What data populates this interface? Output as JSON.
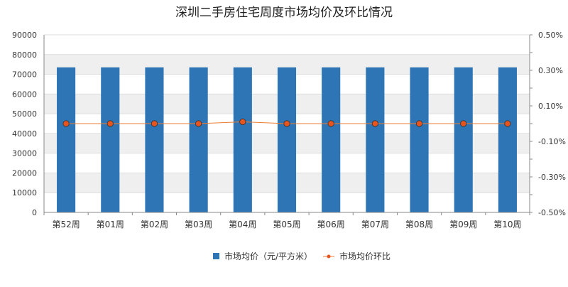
{
  "chart_data": {
    "type": "bar",
    "title": "深圳二手房住宅周度市场均价及环比情况",
    "categories": [
      "第52周",
      "第01周",
      "第02周",
      "第03周",
      "第04周",
      "第05周",
      "第06周",
      "第07周",
      "第08周",
      "第09周",
      "第10周"
    ],
    "series": [
      {
        "name": "市场均价（元/平方米）",
        "type": "bar",
        "axis": "left",
        "color": "#2e75b6",
        "values": [
          73500,
          73500,
          73500,
          73500,
          73500,
          73500,
          73500,
          73500,
          73500,
          73500,
          73500
        ]
      },
      {
        "name": "市场均价环比",
        "type": "line",
        "axis": "right",
        "color": "#ed7d31",
        "marker_color": "#e8541e",
        "values": [
          0.0,
          0.0,
          0.0,
          0.0,
          0.01,
          0.0,
          0.0,
          0.0,
          0.0,
          0.0,
          0.0
        ]
      }
    ],
    "y_left": {
      "min": 0,
      "max": 90000,
      "step": 10000,
      "ticks": [
        "0",
        "10000",
        "20000",
        "30000",
        "40000",
        "50000",
        "60000",
        "70000",
        "80000",
        "90000"
      ]
    },
    "y_right": {
      "min": -0.5,
      "max": 0.5,
      "ticks": [
        {
          "value": -0.5,
          "label": "-0.50%"
        },
        {
          "value": -0.3,
          "label": "-0.30%"
        },
        {
          "value": -0.1,
          "label": "-0.10%"
        },
        {
          "value": 0.1,
          "label": "0.10%"
        },
        {
          "value": 0.3,
          "label": "0.30%"
        },
        {
          "value": 0.5,
          "label": "0.50%"
        }
      ]
    },
    "grid": "horizontal-banded",
    "legend_position": "bottom-center"
  }
}
